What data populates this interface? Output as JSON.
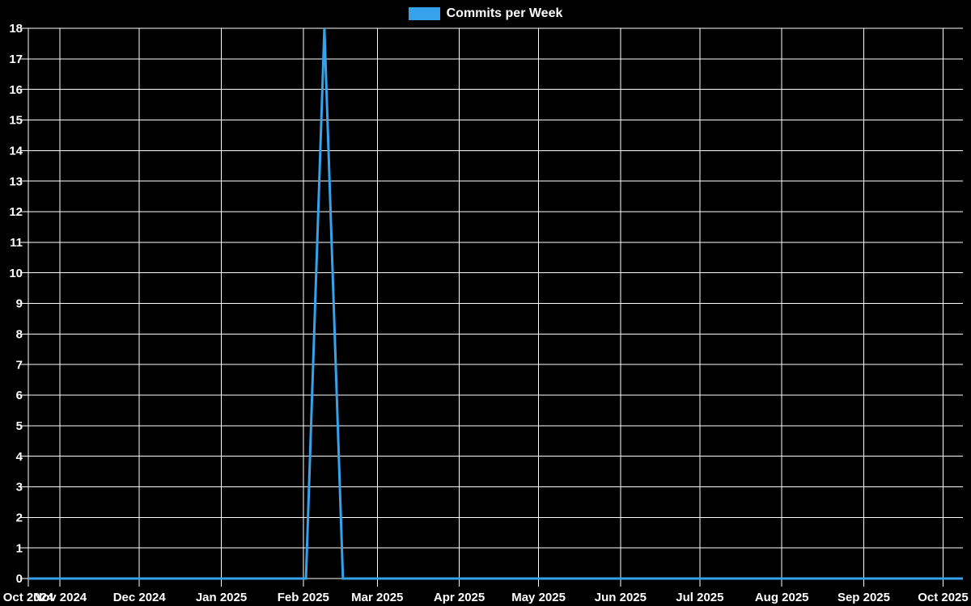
{
  "colors": {
    "background": "#000000",
    "grid": "#ffffff",
    "text": "#ffffff",
    "accent_blue": "#36a2eb"
  },
  "chart_data": {
    "type": "line",
    "title": "Commits per Week",
    "legend_position": "top-center",
    "grid": true,
    "x_axis": {
      "type": "time",
      "tick_labels": [
        "Oct 2024",
        "Nov 2024",
        "Dec 2024",
        "Jan 2025",
        "Feb 2025",
        "Mar 2025",
        "Apr 2025",
        "May 2025",
        "Jun 2025",
        "Jul 2025",
        "Aug 2025",
        "Sep 2025",
        "Oct 2025"
      ]
    },
    "y_axis": {
      "min": 0,
      "max": 18,
      "tick_step": 1,
      "tick_labels": [
        "0",
        "1",
        "2",
        "3",
        "4",
        "5",
        "6",
        "7",
        "8",
        "9",
        "10",
        "11",
        "12",
        "13",
        "14",
        "15",
        "16",
        "17",
        "18"
      ]
    },
    "series": [
      {
        "name": "Commits per Week",
        "color": "#36a2eb",
        "line_width": 3,
        "start_date": "2024-10-20",
        "interval_days": 7,
        "values": [
          0,
          0,
          0,
          0,
          0,
          0,
          0,
          0,
          0,
          0,
          0,
          0,
          0,
          0,
          0,
          0,
          18,
          0,
          0,
          0,
          0,
          0,
          0,
          0,
          0,
          0,
          0,
          0,
          0,
          0,
          0,
          0,
          0,
          0,
          0,
          0,
          0,
          0,
          0,
          0,
          0,
          0,
          0,
          0,
          0,
          0,
          0,
          0,
          0,
          0,
          0,
          0
        ]
      }
    ],
    "annotations": {
      "peak_week": "2025-02-09",
      "peak_value": 18,
      "note": "All other weeks are 0 commits"
    }
  }
}
